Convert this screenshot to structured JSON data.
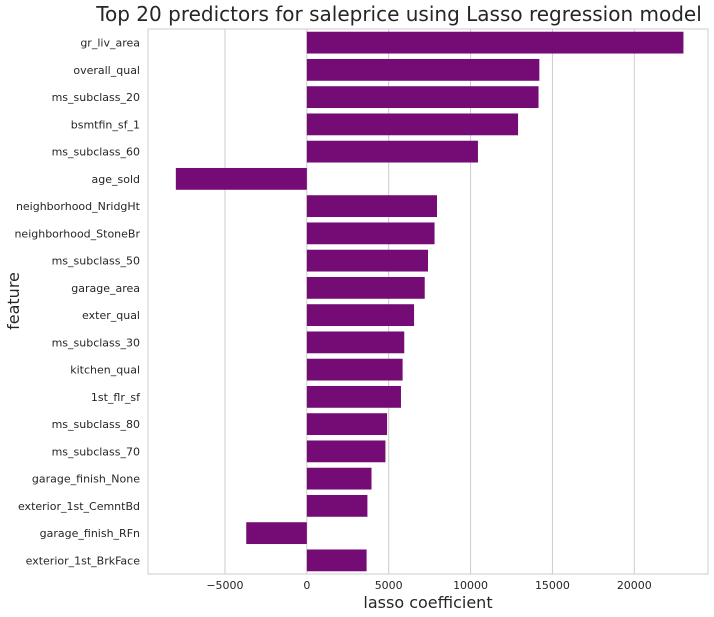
{
  "chart_data": {
    "type": "bar",
    "orientation": "horizontal",
    "title": "Top 20 predictors for saleprice using Lasso regression model",
    "xlabel": "lasso coefficient",
    "ylabel": "feature",
    "xlim": [
      -9700,
      24500
    ],
    "xticks": [
      -5000,
      0,
      5000,
      10000,
      15000,
      20000
    ],
    "xtick_labels": [
      "−5000",
      "0",
      "5000",
      "10000",
      "15000",
      "20000"
    ],
    "grid": "vertical",
    "bar_color": "#750c75",
    "categories": [
      "gr_liv_area",
      "overall_qual",
      "ms_subclass_20",
      "bsmtfin_sf_1",
      "ms_subclass_60",
      "age_sold",
      "neighborhood_NridgHt",
      "neighborhood_StoneBr",
      "ms_subclass_50",
      "garage_area",
      "exter_qual",
      "ms_subclass_30",
      "kitchen_qual",
      "1st_flr_sf",
      "ms_subclass_80",
      "ms_subclass_70",
      "garage_finish_None",
      "exterior_1st_CemntBd",
      "garage_finish_RFn",
      "exterior_1st_BrkFace"
    ],
    "values": [
      23000,
      14200,
      14150,
      12900,
      10450,
      -8000,
      7950,
      7800,
      7400,
      7200,
      6550,
      5950,
      5850,
      5750,
      4900,
      4800,
      3950,
      3700,
      -3700,
      3650
    ]
  }
}
